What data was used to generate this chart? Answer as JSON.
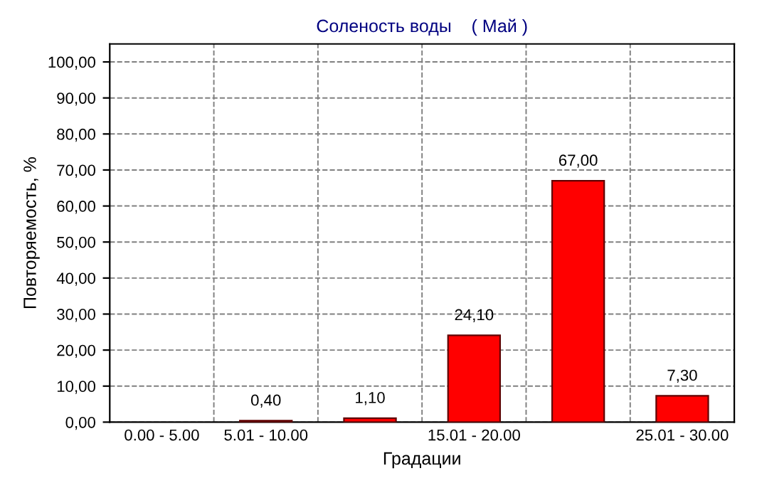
{
  "chart_data": {
    "type": "bar",
    "title": "Соленость воды    ( Май )",
    "xlabel": "Градации",
    "ylabel": "Повторяемость, %",
    "categories": [
      "0.00 - 5.00",
      "5.01 - 10.00",
      null,
      "15.01 - 20.00",
      null,
      "25.01 - 30.00"
    ],
    "values": [
      null,
      0.4,
      1.1,
      24.1,
      67.0,
      7.3
    ],
    "value_labels": [
      null,
      "0,40",
      "1,10",
      "24,10",
      "67,00",
      "7,30"
    ],
    "color": "#ff0000",
    "ylim": [
      0,
      105
    ],
    "yticks": [
      {
        "value": 0,
        "label": "0,00"
      },
      {
        "value": 10,
        "label": "10,00"
      },
      {
        "value": 20,
        "label": "20,00"
      },
      {
        "value": 30,
        "label": "30,00"
      },
      {
        "value": 40,
        "label": "40,00"
      },
      {
        "value": 50,
        "label": "50,00"
      },
      {
        "value": 60,
        "label": "60,00"
      },
      {
        "value": 70,
        "label": "70,00"
      },
      {
        "value": 80,
        "label": "80,00"
      },
      {
        "value": 90,
        "label": "90,00"
      },
      {
        "value": 100,
        "label": "100,00"
      }
    ],
    "grid": true,
    "legend": false
  }
}
